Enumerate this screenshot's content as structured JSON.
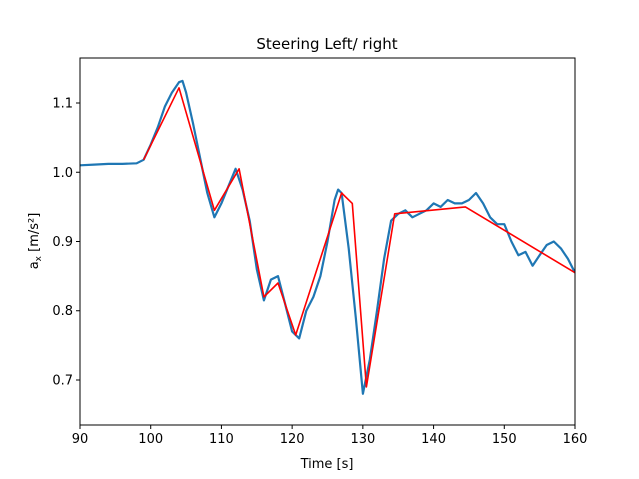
{
  "chart_data": {
    "type": "line",
    "title": "Steering Left/ right",
    "xlabel": "Time [s]",
    "ylabel_main": "a",
    "ylabel_sub": "x",
    "ylabel_unit": " [m/s²]",
    "xlim": [
      90,
      160
    ],
    "ylim": [
      0.635,
      1.165
    ],
    "xticks": [
      90,
      100,
      110,
      120,
      130,
      140,
      150,
      160
    ],
    "yticks": [
      0.7,
      0.8,
      0.9,
      1.0,
      1.1
    ],
    "grid": false,
    "series": [
      {
        "color": "#1f77b4",
        "x": [
          90,
          92,
          94,
          96,
          98,
          99,
          100,
          101,
          102,
          103,
          104,
          104.5,
          105,
          106,
          107,
          108,
          109,
          110,
          111,
          112,
          113,
          114,
          115,
          116,
          117,
          118,
          119,
          120,
          121,
          122,
          123,
          124,
          125,
          126,
          126.5,
          127,
          128,
          129,
          130,
          131,
          132,
          133,
          134,
          135,
          136,
          137,
          138,
          139,
          140,
          141,
          142,
          143,
          144,
          145,
          146,
          147,
          148,
          149,
          150,
          151,
          152,
          153,
          154,
          155,
          156,
          157,
          158,
          159,
          160
        ],
        "y": [
          1.01,
          1.011,
          1.012,
          1.012,
          1.013,
          1.018,
          1.04,
          1.065,
          1.095,
          1.115,
          1.13,
          1.132,
          1.115,
          1.07,
          1.02,
          0.97,
          0.935,
          0.955,
          0.98,
          1.005,
          0.975,
          0.93,
          0.86,
          0.815,
          0.845,
          0.85,
          0.81,
          0.77,
          0.76,
          0.8,
          0.82,
          0.85,
          0.9,
          0.96,
          0.975,
          0.97,
          0.89,
          0.79,
          0.68,
          0.73,
          0.8,
          0.875,
          0.93,
          0.94,
          0.945,
          0.935,
          0.94,
          0.945,
          0.955,
          0.95,
          0.96,
          0.955,
          0.955,
          0.96,
          0.97,
          0.955,
          0.935,
          0.925,
          0.925,
          0.9,
          0.88,
          0.885,
          0.865,
          0.88,
          0.895,
          0.9,
          0.89,
          0.875,
          0.855
        ]
      },
      {
        "color": "#ff0000",
        "x": [
          99,
          104,
          109,
          112.5,
          116,
          118,
          120.5,
          127,
          128.5,
          130.5,
          134.5,
          144.5,
          160
        ],
        "y": [
          1.018,
          1.122,
          0.945,
          1.005,
          0.82,
          0.84,
          0.765,
          0.97,
          0.955,
          0.69,
          0.94,
          0.95,
          0.855
        ]
      }
    ]
  }
}
